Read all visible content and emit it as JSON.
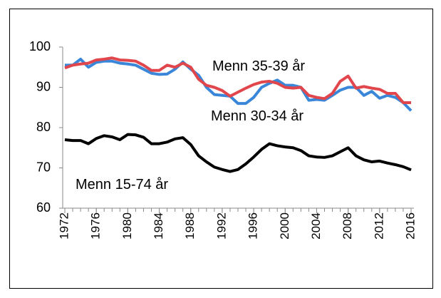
{
  "chart_data": {
    "type": "line",
    "x": [
      1972,
      1973,
      1974,
      1975,
      1976,
      1977,
      1978,
      1979,
      1980,
      1981,
      1982,
      1983,
      1984,
      1985,
      1986,
      1987,
      1988,
      1989,
      1990,
      1991,
      1992,
      1993,
      1994,
      1995,
      1996,
      1997,
      1998,
      1999,
      2000,
      2001,
      2002,
      2003,
      2004,
      2005,
      2006,
      2007,
      2008,
      2009,
      2010,
      2011,
      2012,
      2013,
      2014,
      2015,
      2016
    ],
    "series": [
      {
        "name": "Menn 30-34 år",
        "color": "#3a86d8",
        "values": [
          95.5,
          95.5,
          97,
          95,
          96.2,
          96.5,
          96.5,
          96,
          95.8,
          95.5,
          94.5,
          93.5,
          93.2,
          93.3,
          94.5,
          96.3,
          94.5,
          93,
          90,
          88.2,
          88,
          87.8,
          86,
          86,
          87.5,
          90,
          91,
          91.8,
          90.5,
          90.5,
          90,
          86.8,
          87,
          86.8,
          88,
          89.3,
          90,
          90,
          88,
          89,
          87.3,
          88,
          87.5,
          86.2,
          84.2
        ]
      },
      {
        "name": "Menn 35-39 år",
        "color": "#e0464b",
        "values": [
          94.8,
          95.5,
          95.8,
          96,
          96.8,
          97,
          97.3,
          96.8,
          96.7,
          96.5,
          95.5,
          94.2,
          94.2,
          95.5,
          95,
          96,
          95,
          92,
          90.5,
          90,
          89.2,
          87.8,
          88.8,
          89.8,
          90.7,
          91.3,
          91.5,
          91,
          90,
          89.8,
          90,
          88,
          87.5,
          87.2,
          88.5,
          91.5,
          92.8,
          89.8,
          90.2,
          89.8,
          89.5,
          88.5,
          88.5,
          86.2,
          86.2
        ]
      },
      {
        "name": "Menn 15-74 år",
        "color": "#000000",
        "values": [
          77,
          76.8,
          76.8,
          76,
          77.3,
          78,
          77.7,
          77,
          78.3,
          78.2,
          77.6,
          76,
          76,
          76.4,
          77.2,
          77.5,
          75.8,
          73,
          71.5,
          70.2,
          69.6,
          69.1,
          69.6,
          71,
          72.7,
          74.6,
          76,
          75.5,
          75.2,
          75,
          74.3,
          73,
          72.7,
          72.6,
          73,
          74,
          75,
          73,
          72,
          71.5,
          71.7,
          71.2,
          70.8,
          70.3,
          69.5
        ]
      }
    ],
    "xlim": [
      1972,
      2016
    ],
    "xticks": [
      1972,
      1976,
      1980,
      1984,
      1988,
      1992,
      1996,
      2000,
      2004,
      2008,
      2012,
      2016
    ],
    "ylim": [
      60,
      100
    ],
    "yticks": [
      60,
      70,
      80,
      90,
      100
    ],
    "grid": false
  }
}
